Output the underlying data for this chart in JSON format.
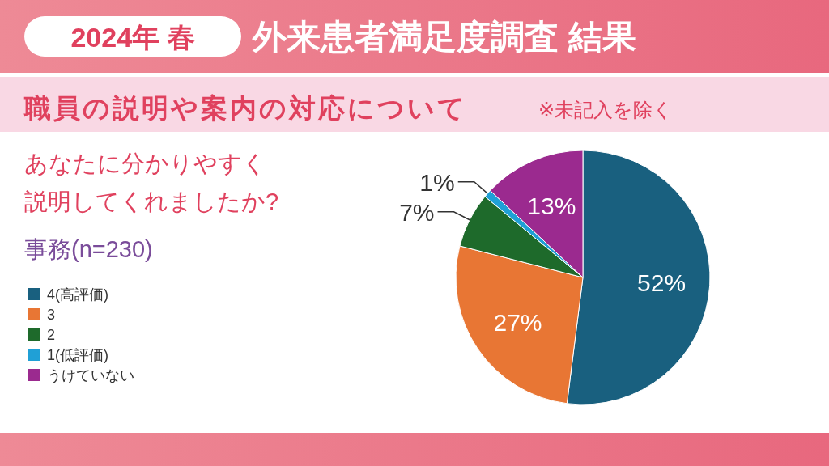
{
  "chart_data": {
    "type": "pie",
    "title": "外来患者満足度調査 結果",
    "subtitle": "職員の説明や案内の対応について",
    "annotations": [
      "2024年 春",
      "※未記入を除く",
      "あなたに分かりやすく",
      "説明してくれましたか?",
      "事務(n=230)"
    ],
    "categories": [
      "4(高評価)",
      "3",
      "2",
      "1(低評価)",
      "うけていない"
    ],
    "values": [
      52,
      27,
      7,
      1,
      13
    ],
    "colors": [
      "#19607f",
      "#e87634",
      "#1e6a2b",
      "#20a0d6",
      "#9b2a8f"
    ],
    "value_labels": [
      "52%",
      "27%",
      "7%",
      "1%",
      "13%"
    ],
    "legend": "left"
  }
}
